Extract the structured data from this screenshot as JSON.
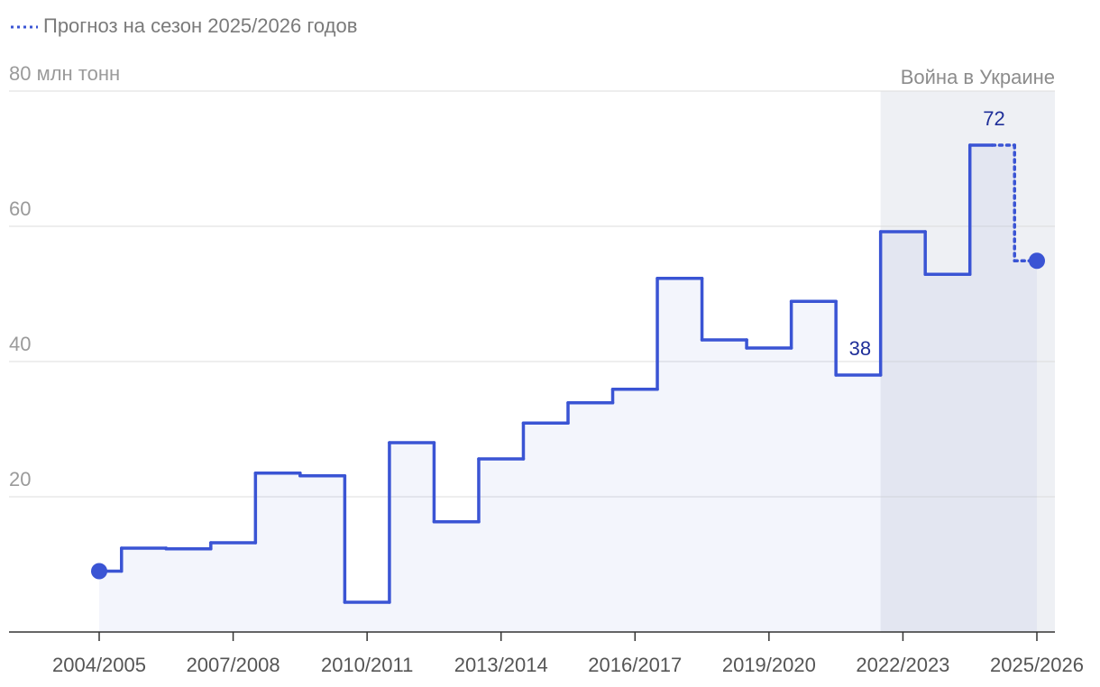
{
  "chart_data": {
    "type": "step",
    "categories": [
      "2004/2005",
      null,
      null,
      "2007/2008",
      null,
      null,
      "2010/2011",
      null,
      null,
      "2013/2014",
      null,
      null,
      "2016/2017",
      null,
      null,
      "2019/2020",
      null,
      null,
      "2022/2023",
      null,
      null,
      "2025/2026"
    ],
    "series": [
      {
        "color": "#3a54d4",
        "style": "solid",
        "values": [
          9,
          12.4,
          12.3,
          13.2,
          23.5,
          23.1,
          4.4,
          28,
          16.3,
          25.6,
          30.9,
          33.9,
          35.9,
          52.3,
          43.2,
          42,
          48.9,
          38,
          59.2,
          52.9,
          72,
          null
        ]
      },
      {
        "name": "Прогноз на сезон 2025/2026 годов",
        "color": "#3a54d4",
        "style": "dotted",
        "values": [
          null,
          null,
          null,
          null,
          null,
          null,
          null,
          null,
          null,
          null,
          null,
          null,
          null,
          null,
          null,
          null,
          null,
          null,
          null,
          null,
          72,
          54.9
        ]
      }
    ],
    "labeled_points": [
      17,
      20
    ],
    "ylim": [
      0,
      80
    ],
    "yticks": [
      20,
      40,
      60,
      {
        "value": 80,
        "label": "80 млн тонн"
      }
    ],
    "grid": true,
    "shade": {
      "label": "Война в Украине",
      "start_index": 18
    }
  }
}
